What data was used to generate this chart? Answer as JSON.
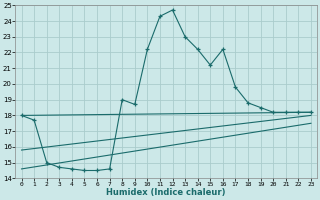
{
  "title": "",
  "xlabel": "Humidex (Indice chaleur)",
  "bg_color": "#cce8e8",
  "grid_color": "#aacccc",
  "line_color": "#1a6b6b",
  "xlim": [
    -0.5,
    23.5
  ],
  "ylim": [
    14,
    25
  ],
  "xticks": [
    0,
    1,
    2,
    3,
    4,
    5,
    6,
    7,
    8,
    9,
    10,
    11,
    12,
    13,
    14,
    15,
    16,
    17,
    18,
    19,
    20,
    21,
    22,
    23
  ],
  "yticks": [
    14,
    15,
    16,
    17,
    18,
    19,
    20,
    21,
    22,
    23,
    24,
    25
  ],
  "series1_x": [
    0,
    1,
    2,
    3,
    4,
    5,
    6,
    7,
    8,
    9,
    10,
    11,
    12,
    13,
    14,
    15,
    16,
    17,
    18,
    19,
    20,
    21,
    22,
    23
  ],
  "series1_y": [
    18.0,
    17.7,
    15.0,
    14.7,
    14.6,
    14.5,
    14.5,
    14.6,
    19.0,
    18.7,
    22.2,
    24.3,
    24.7,
    23.0,
    22.2,
    21.2,
    22.2,
    19.8,
    18.8,
    18.5,
    18.2,
    18.2,
    18.2,
    18.2
  ],
  "line2_x": [
    0,
    23
  ],
  "line2_y": [
    18.0,
    18.2
  ],
  "line3_x": [
    0,
    23
  ],
  "line3_y": [
    15.8,
    18.0
  ],
  "line4_x": [
    0,
    23
  ],
  "line4_y": [
    14.6,
    17.5
  ]
}
